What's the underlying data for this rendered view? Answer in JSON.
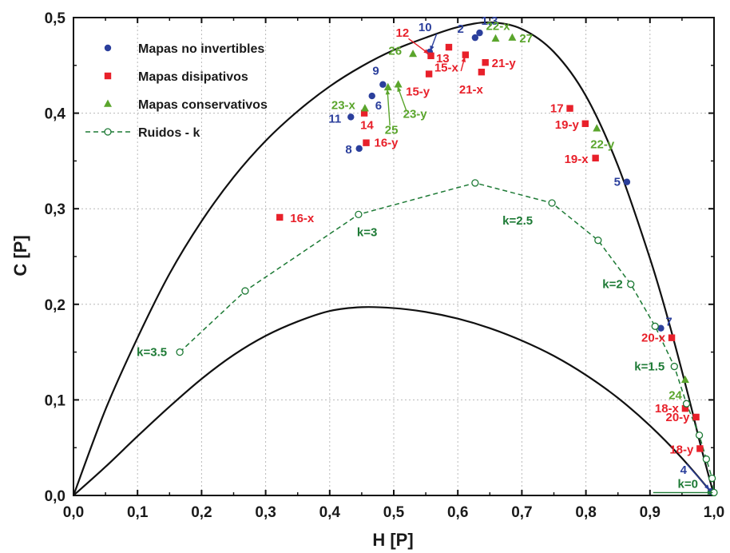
{
  "chart_data": {
    "type": "scatter",
    "xlabel": "H [P]",
    "ylabel": "C [P]",
    "xlim": [
      0,
      1
    ],
    "ylim": [
      0,
      0.5
    ],
    "x_ticks": [
      "0,0",
      "0,1",
      "0,2",
      "0,3",
      "0,4",
      "0,5",
      "0,6",
      "0,7",
      "0,8",
      "0,9",
      "1,0"
    ],
    "y_ticks": [
      "0,0",
      "0,1",
      "0,2",
      "0,3",
      "0,4",
      "0,5"
    ],
    "grid": true,
    "legend_position": "top-left",
    "colors": {
      "blue": "#2b3f9c",
      "red": "#e8202a",
      "green": "#5aa52c",
      "darkgreen": "#1d7a35",
      "black": "#111111"
    },
    "legend": [
      {
        "label": "Mapas no invertibles",
        "marker": "circle",
        "color": "#2b3f9c"
      },
      {
        "label": "Mapas disipativos",
        "marker": "square",
        "color": "#e8202a"
      },
      {
        "label": "Mapas conservativos",
        "marker": "triangle",
        "color": "#5aa52c"
      },
      {
        "label": "Ruidos - k",
        "marker": "open-circle-dashed",
        "color": "#1d7a35"
      }
    ],
    "series": [
      {
        "name": "Mapas no invertibles",
        "points": [
          {
            "x": 0.627,
            "y": 0.479,
            "label": "2"
          },
          {
            "x": 0.634,
            "y": 0.484,
            "label": "1,3"
          },
          {
            "x": 0.556,
            "y": 0.464,
            "label": "10"
          },
          {
            "x": 0.483,
            "y": 0.43,
            "label": "9"
          },
          {
            "x": 0.466,
            "y": 0.418,
            "label": "6"
          },
          {
            "x": 0.433,
            "y": 0.396,
            "label": "11"
          },
          {
            "x": 0.446,
            "y": 0.363,
            "label": "8"
          },
          {
            "x": 0.864,
            "y": 0.328,
            "label": "5"
          },
          {
            "x": 0.917,
            "y": 0.175,
            "label": "7"
          },
          {
            "x": 0.995,
            "y": 0.004,
            "label": "4"
          }
        ]
      },
      {
        "name": "Mapas disipativos",
        "points": [
          {
            "x": 0.558,
            "y": 0.46,
            "label": "12"
          },
          {
            "x": 0.586,
            "y": 0.469,
            "label": "13"
          },
          {
            "x": 0.612,
            "y": 0.461,
            "label": "15-x"
          },
          {
            "x": 0.555,
            "y": 0.441,
            "label": "15-y"
          },
          {
            "x": 0.643,
            "y": 0.453,
            "label": "21-y"
          },
          {
            "x": 0.637,
            "y": 0.443,
            "label": "21-x"
          },
          {
            "x": 0.454,
            "y": 0.4,
            "label": "14"
          },
          {
            "x": 0.457,
            "y": 0.369,
            "label": "16-y"
          },
          {
            "x": 0.322,
            "y": 0.291,
            "label": "16-x"
          },
          {
            "x": 0.775,
            "y": 0.405,
            "label": "17"
          },
          {
            "x": 0.799,
            "y": 0.389,
            "label": "19-y"
          },
          {
            "x": 0.815,
            "y": 0.353,
            "label": "19-x"
          },
          {
            "x": 0.934,
            "y": 0.165,
            "label": "20-x"
          },
          {
            "x": 0.955,
            "y": 0.091,
            "label": "18-x"
          },
          {
            "x": 0.972,
            "y": 0.082,
            "label": "20-y"
          },
          {
            "x": 0.978,
            "y": 0.049,
            "label": "18-y"
          }
        ]
      },
      {
        "name": "Mapas conservativos",
        "points": [
          {
            "x": 0.659,
            "y": 0.478,
            "label": "22-x"
          },
          {
            "x": 0.685,
            "y": 0.479,
            "label": "27"
          },
          {
            "x": 0.53,
            "y": 0.462,
            "label": "26"
          },
          {
            "x": 0.455,
            "y": 0.405,
            "label": "23-x"
          },
          {
            "x": 0.491,
            "y": 0.427,
            "label": "25"
          },
          {
            "x": 0.507,
            "y": 0.43,
            "label": "23-y"
          },
          {
            "x": 0.817,
            "y": 0.384,
            "label": "22-y"
          },
          {
            "x": 0.955,
            "y": 0.121,
            "label": "24"
          }
        ]
      },
      {
        "name": "Ruidos - k",
        "points": [
          {
            "x": 0.166,
            "y": 0.15,
            "label": "k=3.5"
          },
          {
            "x": 0.268,
            "y": 0.214,
            "label": ""
          },
          {
            "x": 0.445,
            "y": 0.294,
            "label": "k=3"
          },
          {
            "x": 0.627,
            "y": 0.327,
            "label": ""
          },
          {
            "x": 0.747,
            "y": 0.306,
            "label": "k=2.5"
          },
          {
            "x": 0.819,
            "y": 0.267,
            "label": ""
          },
          {
            "x": 0.87,
            "y": 0.221,
            "label": "k=2"
          },
          {
            "x": 0.908,
            "y": 0.177,
            "label": ""
          },
          {
            "x": 0.938,
            "y": 0.135,
            "label": "k=1.5"
          },
          {
            "x": 0.957,
            "y": 0.096,
            "label": ""
          },
          {
            "x": 0.977,
            "y": 0.063,
            "label": ""
          },
          {
            "x": 0.988,
            "y": 0.038,
            "label": ""
          },
          {
            "x": 0.997,
            "y": 0.018,
            "label": ""
          },
          {
            "x": 1.0,
            "y": 0.003,
            "label": "k=0"
          }
        ]
      }
    ],
    "curves": [
      {
        "name": "upper",
        "points": [
          [
            0,
            0
          ],
          [
            0.05,
            0.09
          ],
          [
            0.1,
            0.165
          ],
          [
            0.15,
            0.232
          ],
          [
            0.2,
            0.287
          ],
          [
            0.25,
            0.333
          ],
          [
            0.3,
            0.371
          ],
          [
            0.35,
            0.402
          ],
          [
            0.4,
            0.428
          ],
          [
            0.45,
            0.449
          ],
          [
            0.5,
            0.466
          ],
          [
            0.55,
            0.479
          ],
          [
            0.6,
            0.49
          ],
          [
            0.65,
            0.495
          ],
          [
            0.7,
            0.488
          ],
          [
            0.75,
            0.464
          ],
          [
            0.8,
            0.418
          ],
          [
            0.85,
            0.345
          ],
          [
            0.9,
            0.248
          ],
          [
            0.93,
            0.18
          ],
          [
            0.96,
            0.104
          ],
          [
            0.98,
            0.05
          ],
          [
            1.0,
            0
          ]
        ]
      },
      {
        "name": "lower",
        "points": [
          [
            0,
            0
          ],
          [
            0.05,
            0.03
          ],
          [
            0.1,
            0.062
          ],
          [
            0.15,
            0.093
          ],
          [
            0.2,
            0.122
          ],
          [
            0.25,
            0.147
          ],
          [
            0.3,
            0.167
          ],
          [
            0.35,
            0.182
          ],
          [
            0.4,
            0.193
          ],
          [
            0.45,
            0.197
          ],
          [
            0.5,
            0.196
          ],
          [
            0.55,
            0.192
          ],
          [
            0.6,
            0.185
          ],
          [
            0.65,
            0.175
          ],
          [
            0.7,
            0.162
          ],
          [
            0.75,
            0.146
          ],
          [
            0.8,
            0.126
          ],
          [
            0.85,
            0.102
          ],
          [
            0.9,
            0.073
          ],
          [
            0.95,
            0.039
          ],
          [
            1.0,
            0
          ]
        ]
      }
    ]
  }
}
